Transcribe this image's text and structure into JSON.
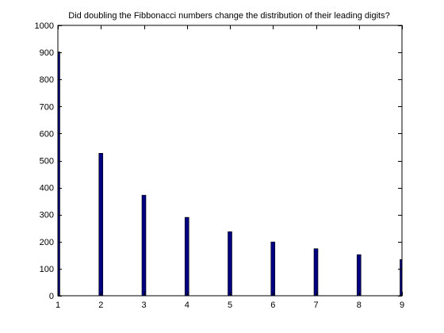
{
  "chart_data": {
    "type": "bar",
    "title": "Did doubling the Fibbonacci numbers change the distribution of their leading digits?",
    "xlabel": "",
    "ylabel": "",
    "categories": [
      1,
      2,
      3,
      4,
      5,
      6,
      7,
      8,
      9
    ],
    "values": [
      902,
      527,
      372,
      290,
      237,
      199,
      174,
      152,
      134
    ],
    "xlim": [
      1,
      9
    ],
    "ylim": [
      0,
      1000
    ],
    "xticks": [
      "1",
      "2",
      "3",
      "4",
      "5",
      "6",
      "7",
      "8",
      "9"
    ],
    "yticks": [
      "0",
      "100",
      "200",
      "300",
      "400",
      "500",
      "600",
      "700",
      "800",
      "900",
      "1000"
    ],
    "bar_color": "#000080",
    "grid": false,
    "legend": "none"
  }
}
